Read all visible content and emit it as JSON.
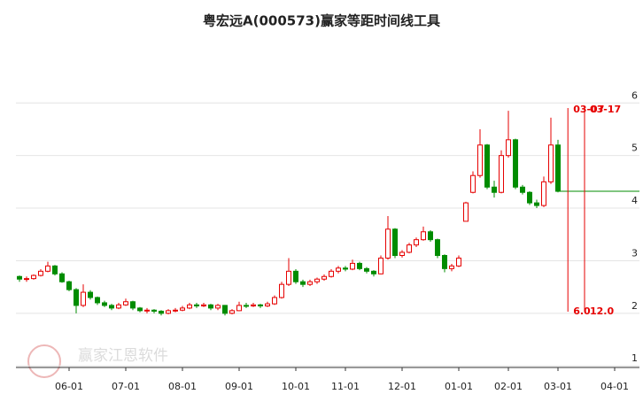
{
  "chart_data": {
    "type": "candlestick",
    "title": "粤宏远A(000573)赢家等距时间线工具",
    "watermark": "赢家江恩软件",
    "up_color": "#e60000",
    "down_color": "#008c00",
    "grid": true,
    "ylim": [
      0.97,
      7.2
    ],
    "yticks": [
      1,
      2,
      3,
      4,
      5,
      6
    ],
    "categories": [
      null,
      null,
      null,
      null,
      null,
      null,
      null,
      "06-01",
      null,
      null,
      null,
      null,
      null,
      null,
      null,
      "07-01",
      null,
      null,
      null,
      null,
      null,
      null,
      null,
      "08-01",
      null,
      null,
      null,
      null,
      null,
      null,
      null,
      "09-01",
      null,
      null,
      null,
      null,
      null,
      null,
      null,
      "10-01",
      null,
      null,
      null,
      null,
      null,
      null,
      "11-01",
      null,
      null,
      null,
      null,
      null,
      null,
      null,
      "12-01",
      null,
      null,
      null,
      null,
      null,
      null,
      null,
      "01-01",
      null,
      null,
      null,
      null,
      null,
      null,
      "02-01",
      null,
      null,
      null,
      null,
      null,
      null,
      "03-01",
      null,
      null,
      null,
      null,
      null,
      null,
      null,
      "04-01",
      null,
      null,
      null
    ],
    "candles": [
      [
        2.7,
        2.72,
        2.6,
        2.65
      ],
      [
        2.65,
        2.7,
        2.6,
        2.66
      ],
      [
        2.66,
        2.74,
        2.64,
        2.72
      ],
      [
        2.72,
        2.84,
        2.7,
        2.8
      ],
      [
        2.8,
        2.98,
        2.78,
        2.9
      ],
      [
        2.9,
        2.92,
        2.72,
        2.75
      ],
      [
        2.75,
        2.78,
        2.58,
        2.6
      ],
      [
        2.6,
        2.62,
        2.42,
        2.45
      ],
      [
        2.45,
        2.48,
        2.0,
        2.15
      ],
      [
        2.15,
        2.55,
        2.12,
        2.4
      ],
      [
        2.4,
        2.44,
        2.26,
        2.3
      ],
      [
        2.3,
        2.32,
        2.16,
        2.2
      ],
      [
        2.2,
        2.24,
        2.12,
        2.15
      ],
      [
        2.15,
        2.18,
        2.06,
        2.1
      ],
      [
        2.1,
        2.2,
        2.08,
        2.16
      ],
      [
        2.16,
        2.28,
        2.14,
        2.22
      ],
      [
        2.22,
        2.24,
        2.06,
        2.1
      ],
      [
        2.1,
        2.12,
        2.02,
        2.05
      ],
      [
        2.05,
        2.1,
        2.0,
        2.06
      ],
      [
        2.06,
        2.08,
        2.0,
        2.04
      ],
      [
        2.04,
        2.06,
        1.96,
        2.0
      ],
      [
        2.0,
        2.08,
        1.98,
        2.05
      ],
      [
        2.05,
        2.1,
        2.02,
        2.06
      ],
      [
        2.06,
        2.14,
        2.04,
        2.1
      ],
      [
        2.1,
        2.2,
        2.08,
        2.16
      ],
      [
        2.16,
        2.2,
        2.1,
        2.14
      ],
      [
        2.14,
        2.2,
        2.12,
        2.16
      ],
      [
        2.16,
        2.18,
        2.06,
        2.1
      ],
      [
        2.1,
        2.18,
        2.06,
        2.15
      ],
      [
        2.15,
        2.16,
        1.96,
        2.0
      ],
      [
        2.0,
        2.08,
        1.98,
        2.05
      ],
      [
        2.05,
        2.22,
        2.04,
        2.15
      ],
      [
        2.15,
        2.2,
        2.1,
        2.14
      ],
      [
        2.14,
        2.2,
        2.12,
        2.16
      ],
      [
        2.16,
        2.18,
        2.1,
        2.14
      ],
      [
        2.14,
        2.22,
        2.12,
        2.18
      ],
      [
        2.18,
        2.34,
        2.16,
        2.3
      ],
      [
        2.3,
        2.6,
        2.28,
        2.55
      ],
      [
        2.55,
        3.05,
        2.52,
        2.8
      ],
      [
        2.8,
        2.84,
        2.56,
        2.6
      ],
      [
        2.6,
        2.64,
        2.5,
        2.55
      ],
      [
        2.55,
        2.64,
        2.52,
        2.6
      ],
      [
        2.6,
        2.68,
        2.56,
        2.65
      ],
      [
        2.65,
        2.74,
        2.62,
        2.7
      ],
      [
        2.7,
        2.84,
        2.68,
        2.8
      ],
      [
        2.8,
        2.9,
        2.76,
        2.86
      ],
      [
        2.86,
        2.9,
        2.8,
        2.84
      ],
      [
        2.84,
        3.02,
        2.82,
        2.95
      ],
      [
        2.95,
        2.98,
        2.82,
        2.85
      ],
      [
        2.85,
        2.88,
        2.76,
        2.8
      ],
      [
        2.8,
        2.82,
        2.7,
        2.75
      ],
      [
        2.75,
        3.1,
        2.74,
        3.05
      ],
      [
        3.05,
        3.85,
        3.02,
        3.6
      ],
      [
        3.6,
        3.62,
        3.05,
        3.1
      ],
      [
        3.1,
        3.2,
        3.06,
        3.16
      ],
      [
        3.16,
        3.34,
        3.14,
        3.3
      ],
      [
        3.3,
        3.44,
        3.26,
        3.4
      ],
      [
        3.4,
        3.65,
        3.38,
        3.55
      ],
      [
        3.55,
        3.58,
        3.36,
        3.4
      ],
      [
        3.4,
        3.42,
        3.05,
        3.1
      ],
      [
        3.1,
        3.12,
        2.78,
        2.85
      ],
      [
        2.85,
        2.94,
        2.8,
        2.9
      ],
      [
        2.9,
        3.1,
        2.88,
        3.05
      ],
      [
        3.75,
        4.12,
        3.75,
        4.1
      ],
      [
        4.3,
        4.7,
        4.28,
        4.62
      ],
      [
        4.62,
        5.5,
        4.58,
        5.2
      ],
      [
        5.2,
        5.22,
        4.36,
        4.4
      ],
      [
        4.4,
        4.52,
        4.2,
        4.3
      ],
      [
        4.3,
        5.1,
        4.28,
        5.0
      ],
      [
        5.0,
        5.85,
        4.96,
        5.3
      ],
      [
        5.3,
        5.32,
        4.36,
        4.4
      ],
      [
        4.4,
        4.44,
        4.26,
        4.3
      ],
      [
        4.3,
        4.32,
        4.06,
        4.1
      ],
      [
        4.1,
        4.16,
        4.0,
        4.05
      ],
      [
        4.05,
        4.6,
        4.02,
        4.5
      ],
      [
        4.5,
        5.72,
        4.46,
        5.2
      ],
      [
        5.2,
        5.3,
        4.3,
        4.32
      ]
    ],
    "reference_line": 4.32,
    "markers": [
      {
        "x": 77.4,
        "label": "03-07",
        "value_label": "6.0"
      },
      {
        "x": 79.75,
        "label": "03-17",
        "value_label": "12.0"
      }
    ]
  }
}
